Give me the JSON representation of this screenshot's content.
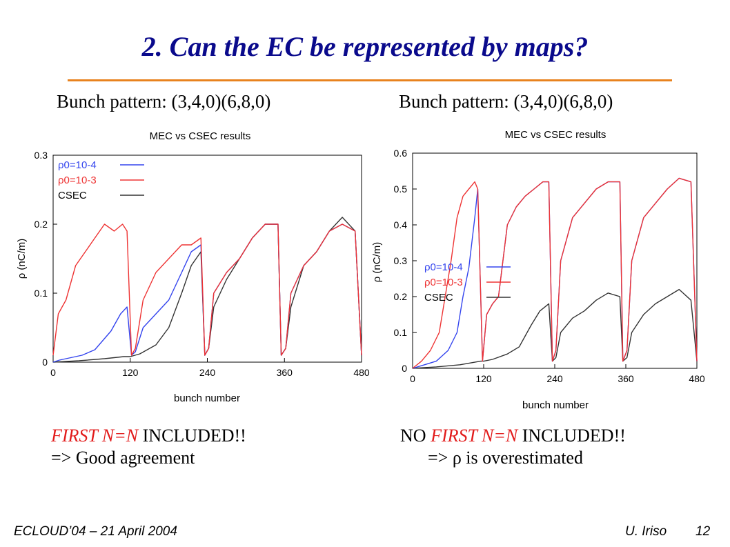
{
  "slide": {
    "title": "2. Can the EC be represented by maps?",
    "accent_color": "#e8821e",
    "title_color": "#0a0a8c"
  },
  "left_panel": {
    "subtitle": "Bunch pattern: (3,4,0)(6,8,0)",
    "caption_line1_red": "FIRST N=N",
    "caption_line1_rest": " INCLUDED!!",
    "caption_line2": "=> Good agreement"
  },
  "right_panel": {
    "subtitle": "Bunch pattern: (3,4,0)(6,8,0)",
    "caption_line1_prefix": "NO ",
    "caption_line1_red": "FIRST N=N",
    "caption_line1_rest": " INCLUDED!!",
    "caption_line2": "=> ρ is overestimated"
  },
  "footer": {
    "left": "ECLOUD’04 – 21 April 2004",
    "author": "U. Iriso",
    "page": "12"
  },
  "chart_data": [
    {
      "type": "line",
      "title": "MEC vs CSEC results",
      "xlabel": "bunch number",
      "ylabel": "ρ (nC/m)",
      "xlim": [
        0,
        480
      ],
      "ylim": [
        0,
        0.3
      ],
      "xticks": [
        "0",
        "120",
        "240",
        "360",
        "480"
      ],
      "yticks": [
        "0",
        "0.1",
        "0.2",
        "0.3"
      ],
      "legend_position": "top-left",
      "grid": false,
      "series": [
        {
          "name": "ρ0=10-4",
          "color": "#3344ee",
          "x": [
            0,
            10,
            25,
            45,
            65,
            90,
            105,
            115,
            122,
            128,
            140,
            160,
            180,
            200,
            215,
            230,
            236,
            242,
            250,
            270,
            290,
            310,
            330,
            350,
            355,
            362,
            370,
            390,
            410,
            430,
            450,
            470,
            480
          ],
          "y": [
            0,
            0.003,
            0.006,
            0.01,
            0.018,
            0.045,
            0.07,
            0.08,
            0.01,
            0.015,
            0.05,
            0.07,
            0.09,
            0.13,
            0.16,
            0.17,
            0.01,
            0.02,
            0.1,
            0.13,
            0.15,
            0.18,
            0.2,
            0.2,
            0.01,
            0.02,
            0.1,
            0.14,
            0.16,
            0.19,
            0.2,
            0.19,
            0.01
          ]
        },
        {
          "name": "ρ0=10-3",
          "color": "#ee3333",
          "x": [
            0,
            8,
            14,
            20,
            35,
            50,
            65,
            80,
            95,
            108,
            115,
            122,
            128,
            140,
            160,
            180,
            200,
            215,
            230,
            236,
            242,
            250,
            270,
            290,
            310,
            330,
            350,
            355,
            362,
            370,
            390,
            410,
            430,
            450,
            470,
            480
          ],
          "y": [
            0.01,
            0.07,
            0.08,
            0.09,
            0.14,
            0.16,
            0.18,
            0.2,
            0.19,
            0.2,
            0.19,
            0.01,
            0.02,
            0.09,
            0.13,
            0.15,
            0.17,
            0.17,
            0.18,
            0.01,
            0.02,
            0.1,
            0.13,
            0.15,
            0.18,
            0.2,
            0.2,
            0.01,
            0.02,
            0.1,
            0.14,
            0.16,
            0.19,
            0.2,
            0.19,
            0.01
          ]
        },
        {
          "name": "CSEC",
          "color": "#333333",
          "x": [
            0,
            40,
            80,
            110,
            120,
            135,
            160,
            180,
            200,
            215,
            230,
            236,
            242,
            250,
            270,
            290,
            310,
            330,
            350,
            355,
            362,
            370,
            390,
            410,
            430,
            450,
            470,
            480
          ],
          "y": [
            0,
            0.002,
            0.005,
            0.008,
            0.008,
            0.012,
            0.025,
            0.05,
            0.1,
            0.14,
            0.16,
            0.01,
            0.02,
            0.08,
            0.12,
            0.15,
            0.18,
            0.2,
            0.2,
            0.01,
            0.02,
            0.08,
            0.14,
            0.16,
            0.19,
            0.21,
            0.19,
            0.01
          ]
        }
      ]
    },
    {
      "type": "line",
      "title": "MEC vs CSEC results",
      "xlabel": "bunch number",
      "ylabel": "ρ (nC/m)",
      "xlim": [
        0,
        480
      ],
      "ylim": [
        0,
        0.6
      ],
      "xticks": [
        "0",
        "120",
        "240",
        "360",
        "480"
      ],
      "yticks": [
        "0",
        "0.1",
        "0.2",
        "0.3",
        "0.4",
        "0.5",
        "0.6"
      ],
      "legend_position": "middle-left",
      "grid": false,
      "series": [
        {
          "name": "ρ0=10-4",
          "color": "#3344ee",
          "x": [
            0,
            20,
            40,
            60,
            75,
            85,
            95,
            105,
            110,
            118,
            125,
            135,
            145,
            160,
            175,
            190,
            205,
            220,
            230,
            236,
            242,
            250,
            270,
            290,
            310,
            330,
            350,
            355,
            362,
            370,
            390,
            410,
            430,
            450,
            470,
            480
          ],
          "y": [
            0,
            0.01,
            0.02,
            0.05,
            0.1,
            0.2,
            0.28,
            0.42,
            0.5,
            0.02,
            0.15,
            0.18,
            0.2,
            0.4,
            0.45,
            0.48,
            0.5,
            0.52,
            0.52,
            0.02,
            0.05,
            0.3,
            0.42,
            0.46,
            0.5,
            0.52,
            0.52,
            0.02,
            0.05,
            0.3,
            0.42,
            0.46,
            0.5,
            0.53,
            0.52,
            0.02
          ]
        },
        {
          "name": "ρ0=10-3",
          "color": "#ee3333",
          "x": [
            0,
            15,
            30,
            45,
            55,
            65,
            75,
            85,
            95,
            105,
            110,
            118,
            125,
            135,
            145,
            160,
            175,
            190,
            205,
            220,
            230,
            236,
            242,
            250,
            270,
            290,
            310,
            330,
            350,
            355,
            362,
            370,
            390,
            410,
            430,
            450,
            470,
            480
          ],
          "y": [
            0,
            0.02,
            0.05,
            0.1,
            0.2,
            0.3,
            0.42,
            0.48,
            0.5,
            0.52,
            0.5,
            0.02,
            0.15,
            0.18,
            0.2,
            0.4,
            0.45,
            0.48,
            0.5,
            0.52,
            0.52,
            0.02,
            0.05,
            0.3,
            0.42,
            0.46,
            0.5,
            0.52,
            0.52,
            0.02,
            0.05,
            0.3,
            0.42,
            0.46,
            0.5,
            0.53,
            0.52,
            0.02
          ]
        },
        {
          "name": "CSEC",
          "color": "#333333",
          "x": [
            0,
            40,
            80,
            115,
            120,
            135,
            160,
            180,
            200,
            215,
            230,
            236,
            242,
            250,
            270,
            290,
            310,
            330,
            350,
            355,
            362,
            370,
            390,
            410,
            430,
            450,
            470,
            480
          ],
          "y": [
            0,
            0.004,
            0.01,
            0.02,
            0.02,
            0.025,
            0.04,
            0.06,
            0.12,
            0.16,
            0.18,
            0.02,
            0.03,
            0.1,
            0.14,
            0.16,
            0.19,
            0.21,
            0.2,
            0.02,
            0.03,
            0.1,
            0.15,
            0.18,
            0.2,
            0.22,
            0.19,
            0.02
          ]
        }
      ]
    }
  ]
}
